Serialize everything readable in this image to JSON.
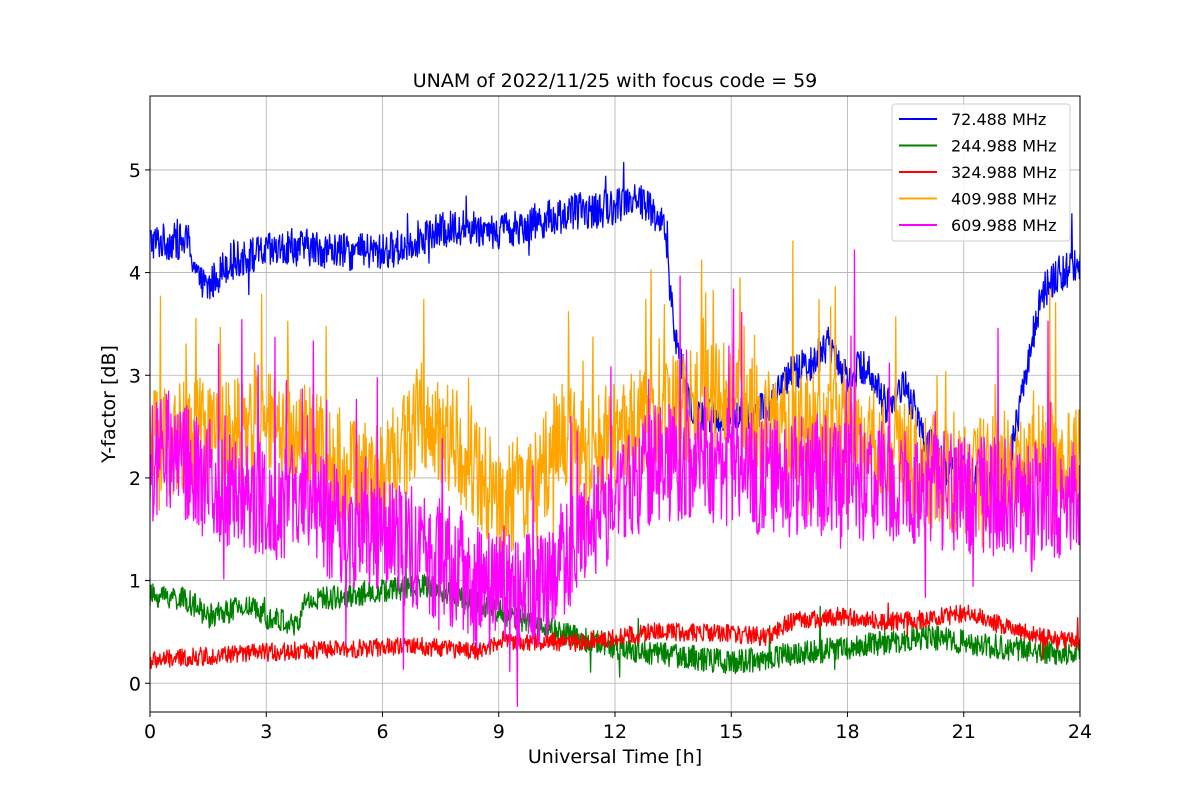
{
  "chart_data": {
    "type": "line",
    "title": "UNAM of 2022/11/25 with focus code = 59",
    "xlabel": "Universal Time [h]",
    "ylabel": "Y-factor [dB]",
    "xlim": [
      0,
      24
    ],
    "ylim": [
      -0.28,
      5.72
    ],
    "xticks": [
      "0",
      "3",
      "6",
      "9",
      "12",
      "15",
      "18",
      "21",
      "24"
    ],
    "yticks": [
      "0",
      "1",
      "2",
      "3",
      "4",
      "5"
    ],
    "grid": true,
    "legend_position": "top-right",
    "series": [
      {
        "name": " 72.488 MHz",
        "color": "#0000ff",
        "x": [
          0,
          0.5,
          1,
          1.25,
          1.5,
          2,
          3,
          4,
          5,
          6,
          6.5,
          7,
          8,
          9,
          10,
          11,
          11.5,
          12,
          12.5,
          13,
          13.3,
          13.5,
          14,
          15,
          16,
          16.5,
          17,
          17.5,
          18,
          18.5,
          19,
          19.5,
          20,
          20.5,
          21,
          22,
          23,
          23.5,
          24
        ],
        "y": [
          4.3,
          4.3,
          4.3,
          3.9,
          3.85,
          4.1,
          4.2,
          4.25,
          4.2,
          4.2,
          4.25,
          4.35,
          4.45,
          4.4,
          4.5,
          4.6,
          4.6,
          4.65,
          4.75,
          4.6,
          4.4,
          3.5,
          2.6,
          2.6,
          2.7,
          3.0,
          3.1,
          3.3,
          3.0,
          3.1,
          2.7,
          2.9,
          2.4,
          2.1,
          2.1,
          1.8,
          3.8,
          4.0,
          4.1
        ]
      },
      {
        "name": "244.988 MHz",
        "color": "#008000",
        "x": [
          0,
          0.5,
          1,
          1.5,
          2,
          2.5,
          3,
          3.5,
          3.8,
          4,
          5,
          6,
          7,
          8,
          9,
          10,
          11,
          12,
          13,
          14,
          15,
          16,
          17,
          18,
          19,
          20,
          21,
          22,
          23,
          24
        ],
        "y": [
          0.85,
          0.85,
          0.8,
          0.65,
          0.7,
          0.75,
          0.65,
          0.6,
          0.55,
          0.8,
          0.85,
          0.9,
          0.95,
          0.85,
          0.7,
          0.55,
          0.45,
          0.35,
          0.3,
          0.25,
          0.2,
          0.25,
          0.3,
          0.35,
          0.4,
          0.45,
          0.4,
          0.35,
          0.3,
          0.3
        ]
      },
      {
        "name": "324.988 MHz",
        "color": "#ff0000",
        "x": [
          0,
          1,
          2,
          3,
          4,
          5,
          6,
          7,
          8,
          8.5,
          9,
          10,
          11,
          12,
          13,
          14,
          15,
          16,
          16.5,
          17,
          18,
          19,
          20,
          21,
          21.5,
          22,
          23,
          24
        ],
        "y": [
          0.22,
          0.25,
          0.28,
          0.3,
          0.32,
          0.33,
          0.35,
          0.36,
          0.33,
          0.3,
          0.42,
          0.4,
          0.4,
          0.45,
          0.5,
          0.5,
          0.48,
          0.45,
          0.6,
          0.62,
          0.65,
          0.6,
          0.62,
          0.68,
          0.65,
          0.55,
          0.45,
          0.4
        ]
      },
      {
        "name": "409.988 MHz",
        "color": "#ffa500",
        "x": [
          0,
          1,
          2,
          3,
          4,
          5,
          6,
          7,
          8,
          9,
          10,
          10.5,
          11,
          12,
          13,
          14,
          15,
          16,
          17,
          18,
          19,
          20,
          21,
          22,
          23,
          24
        ],
        "y": [
          2.3,
          2.4,
          2.5,
          2.5,
          2.4,
          2.1,
          2.0,
          2.6,
          2.3,
          1.8,
          1.9,
          2.4,
          2.3,
          2.4,
          2.6,
          2.7,
          2.8,
          2.5,
          2.5,
          2.4,
          2.3,
          2.1,
          2.0,
          2.1,
          2.2,
          2.2
        ]
      },
      {
        "name": "609.988 MHz",
        "color": "#ff00ff",
        "x": [
          0,
          0.5,
          1,
          2,
          3,
          4,
          5,
          6,
          7,
          8,
          8.5,
          9,
          10,
          11,
          12,
          13,
          14,
          15,
          16,
          17,
          18,
          19,
          20,
          21,
          22,
          23,
          24
        ],
        "y": [
          2.1,
          2.3,
          2.1,
          1.9,
          1.8,
          1.7,
          1.55,
          1.4,
          1.3,
          1.1,
          0.9,
          1.0,
          0.85,
          1.4,
          1.8,
          2.1,
          2.2,
          2.1,
          2.0,
          2.05,
          2.0,
          1.95,
          1.9,
          1.85,
          1.8,
          1.75,
          1.8
        ]
      }
    ]
  }
}
